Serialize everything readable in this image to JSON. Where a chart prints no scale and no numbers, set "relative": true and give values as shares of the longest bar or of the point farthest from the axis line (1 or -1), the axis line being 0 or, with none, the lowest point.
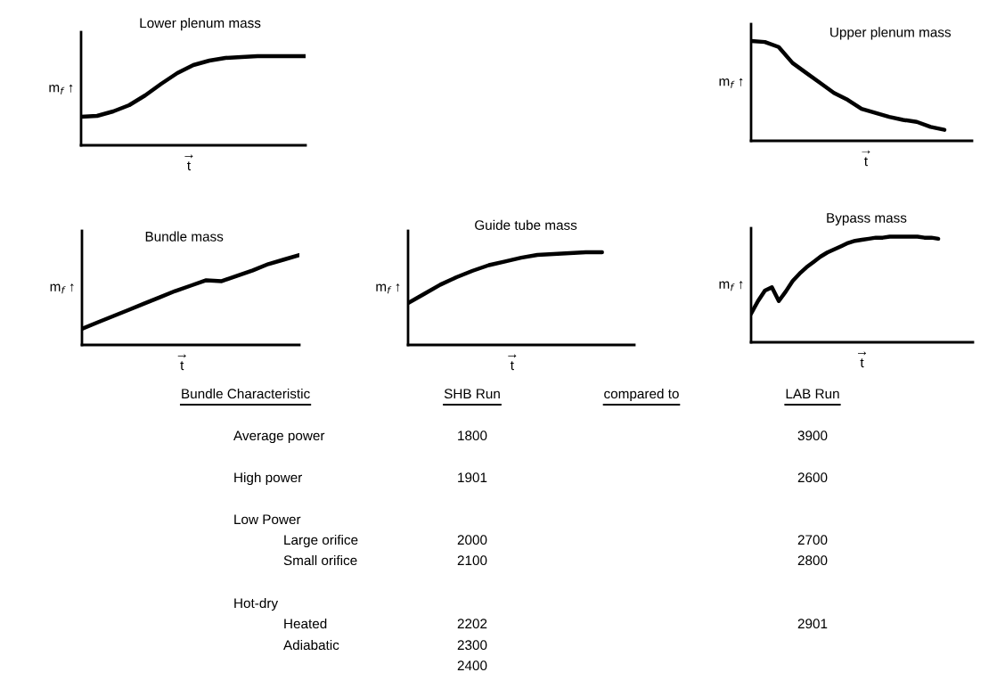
{
  "chart_data": [
    {
      "type": "line",
      "title": "Lower plenum mass",
      "xlabel": "→\nt",
      "ylabel": "m$_{f}$ ↑",
      "relative": true,
      "color": "#000000",
      "categories": [
        null,
        null,
        null,
        null,
        null,
        null,
        null,
        null,
        null,
        null,
        null,
        null,
        null,
        null,
        null
      ],
      "values": [
        0.32,
        0.33,
        0.38,
        0.45,
        0.56,
        0.69,
        0.81,
        0.9,
        0.95,
        0.98,
        0.99,
        1.0,
        1.0,
        1.0,
        1.0
      ]
    },
    {
      "type": "line",
      "title": "Upper plenum mass",
      "xlabel": "→\nt",
      "ylabel": "m$_{f}$ ↑",
      "relative": true,
      "color": "#000000",
      "categories": [
        null,
        null,
        null,
        null,
        null,
        null,
        null,
        null,
        null,
        null,
        null,
        null,
        null,
        null,
        null,
        null,
        null
      ],
      "values": [
        1.0,
        0.99,
        0.94,
        0.78,
        0.68,
        0.58,
        0.48,
        0.41,
        0.32,
        0.28,
        0.24,
        0.21,
        0.19,
        0.14,
        0.11,
        null,
        null
      ]
    },
    {
      "type": "line",
      "title": "Bundle mass",
      "xlabel": "→\nt",
      "ylabel": "m$_{f}$ ↑",
      "relative": true,
      "color": "#000000",
      "categories": [
        null,
        null,
        null,
        null,
        null,
        null,
        null,
        null,
        null,
        null,
        null,
        null,
        null,
        null,
        null
      ],
      "values": [
        0.18,
        0.25,
        0.32,
        0.39,
        0.46,
        0.53,
        0.6,
        0.66,
        0.72,
        0.71,
        0.77,
        0.83,
        0.9,
        0.95,
        1.0
      ]
    },
    {
      "type": "line",
      "title": "Guide tube mass",
      "xlabel": "→\nt",
      "ylabel": "m$_{f}$ ↑",
      "relative": true,
      "color": "#000000",
      "categories": [
        null,
        null,
        null,
        null,
        null,
        null,
        null,
        null,
        null,
        null,
        null,
        null,
        null,
        null,
        null
      ],
      "values": [
        0.45,
        0.55,
        0.65,
        0.73,
        0.8,
        0.86,
        0.9,
        0.94,
        0.97,
        0.98,
        0.99,
        1.0,
        1.0,
        null,
        null
      ]
    },
    {
      "type": "line",
      "title": "Bypass mass",
      "xlabel": "→\nt",
      "ylabel": "m$_{f}$ ↑",
      "relative": true,
      "color": "#000000",
      "categories": [
        null,
        null,
        null,
        null,
        null,
        null,
        null,
        null,
        null,
        null,
        null,
        null,
        null,
        null,
        null,
        null,
        null,
        null,
        null,
        null,
        null,
        null,
        null,
        null,
        null,
        null,
        null,
        null,
        null,
        null,
        null,
        null,
        null
      ],
      "values": [
        0.27,
        0.39,
        0.49,
        0.52,
        0.39,
        0.48,
        0.58,
        0.65,
        0.71,
        0.76,
        0.81,
        0.85,
        0.88,
        0.91,
        0.94,
        0.96,
        0.97,
        0.98,
        0.99,
        0.99,
        1.0,
        1.0,
        1.0,
        1.0,
        1.0,
        0.99,
        0.99,
        0.98,
        null,
        null,
        null,
        null,
        null
      ]
    },
    {
      "type": "other",
      "annotations": [
        "Bundle Characteristic",
        "SHB Run",
        "compared to",
        "LAB Run",
        "Average power",
        "1800",
        "3900",
        "High power",
        "1901",
        "2600",
        "Low Power",
        "Large orifice",
        "2000",
        "2700",
        "Small orifice",
        "2100",
        "2800",
        "Hot-dry",
        "Heated",
        "2202",
        "2901",
        "Adiabatic",
        "2300",
        "2400"
      ]
    }
  ]
}
